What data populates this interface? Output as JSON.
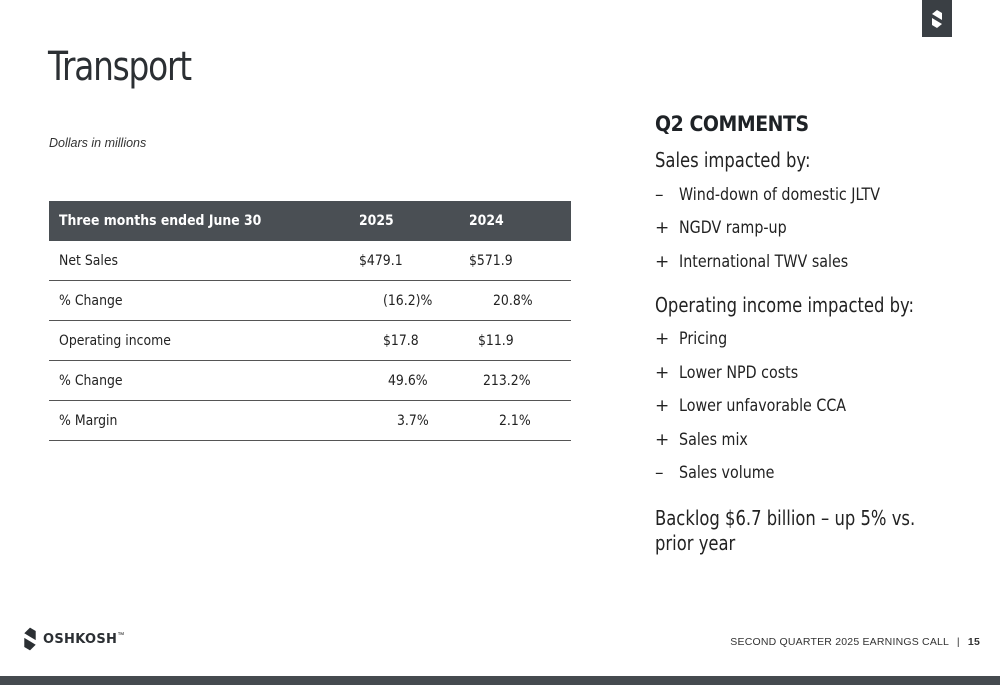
{
  "page": {
    "title": "Transport",
    "subtitle": "Dollars in millions"
  },
  "table": {
    "headers": [
      "Three months ended June 30",
      "2025",
      "2024"
    ],
    "rows": [
      {
        "label": "Net Sales",
        "v2025": "$479.1",
        "v2024": "$571.9"
      },
      {
        "label": "% Change",
        "v2025": "(16.2)%",
        "v2024": "20.8%"
      },
      {
        "label": "Operating income",
        "v2025": "$17.8",
        "v2024": "$11.9"
      },
      {
        "label": "% Change",
        "v2025": "49.6%",
        "v2024": "213.2%"
      },
      {
        "label": "% Margin",
        "v2025": "3.7%",
        "v2024": "2.1%"
      }
    ]
  },
  "comments": {
    "heading": "Q2 COMMENTS",
    "sales_lead": "Sales impacted by:",
    "sales_items": [
      {
        "sign": "–",
        "text": "Wind-down of domestic JLTV"
      },
      {
        "sign": "+",
        "text": "NGDV ramp-up"
      },
      {
        "sign": "+",
        "text": "International TWV sales"
      }
    ],
    "opinc_lead": "Operating income impacted by:",
    "opinc_items": [
      {
        "sign": "+",
        "text": "Pricing"
      },
      {
        "sign": "+",
        "text": "Lower NPD costs"
      },
      {
        "sign": "+",
        "text": "Lower unfavorable CCA"
      },
      {
        "sign": "+",
        "text": "Sales mix"
      },
      {
        "sign": "–",
        "text": "Sales volume"
      }
    ],
    "backlog": "Backlog $6.7 billion – up 5% vs. prior year"
  },
  "footer": {
    "brand": "OSHKOSH",
    "trademark": "™",
    "event": "SECOND QUARTER 2025 EARNINGS CALL",
    "separator": "|",
    "page_number": "15"
  },
  "colors": {
    "header_bg": "#4a4f54",
    "logo_bg": "#3a3f44",
    "bottom_bar": "#454a4f"
  },
  "icons": {
    "corner": "oshkosh-mark-icon",
    "footer": "oshkosh-logo-icon"
  }
}
